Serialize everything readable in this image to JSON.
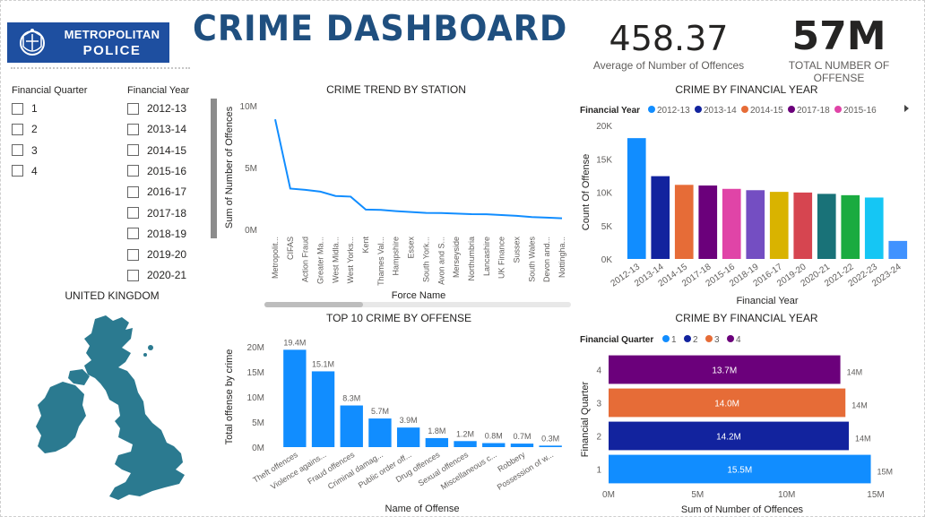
{
  "header": {
    "logo_line1": "METROPOLITAN",
    "logo_line2": "POLICE",
    "title": "CRIME DASHBOARD"
  },
  "kpis": [
    {
      "value": "458.37",
      "label": "Average of Number of Offences"
    },
    {
      "value": "57M",
      "label": "TOTAL NUMBER OF OFFENSE"
    }
  ],
  "slicers": {
    "quarter": {
      "title": "Financial Quarter",
      "options": [
        "1",
        "2",
        "3",
        "4"
      ]
    },
    "year": {
      "title": "Financial Year",
      "options": [
        "2012-13",
        "2013-14",
        "2014-15",
        "2015-16",
        "2016-17",
        "2017-18",
        "2018-19",
        "2019-20",
        "2020-21"
      ]
    }
  },
  "map": {
    "title": "UNITED KINGDOM"
  },
  "colors": {
    "blue": "#118dff",
    "navy": "#12239e",
    "orange": "#e66c37",
    "purple": "#6b007b",
    "pink": "#e044a7",
    "violet": "#744ec2",
    "gold": "#d9b300",
    "red": "#d64550",
    "teal": "#197278",
    "line": "#118dff",
    "map": "#2b7a90"
  },
  "chart_data": [
    {
      "id": "trend",
      "type": "line",
      "title": "CRIME TREND BY STATION",
      "xlabel": "Force Name",
      "ylabel": "Sum of Number of Offences",
      "yticks": [
        "10M",
        "5M",
        "0M"
      ],
      "ylim": [
        0,
        10000000
      ],
      "categories": [
        "Metropolit...",
        "CIFAS",
        "Action Fraud",
        "Greater Ma...",
        "West Midla...",
        "West Yorks...",
        "Kent",
        "Thames Val...",
        "Hampshire",
        "Essex",
        "South York...",
        "Avon and S...",
        "Merseyside",
        "Northumbria",
        "Lancashire",
        "UK Finance",
        "Sussex",
        "South Wales",
        "Devon and...",
        "Nottingha..."
      ],
      "values": [
        8900000,
        3300000,
        3200000,
        3050000,
        2700000,
        2650000,
        1600000,
        1580000,
        1480000,
        1400000,
        1330000,
        1320000,
        1280000,
        1230000,
        1220000,
        1160000,
        1100000,
        1000000,
        950000,
        900000
      ]
    },
    {
      "id": "byyear",
      "type": "bar",
      "title": "CRIME BY FINANCIAL YEAR",
      "legend_title": "Financial Year",
      "legend": [
        "2012-13",
        "2013-14",
        "2014-15",
        "2017-18",
        "2015-16"
      ],
      "xlabel": "Financial Year",
      "ylabel": "Count Of Offense",
      "yticks": [
        "20K",
        "15K",
        "10K",
        "5K",
        "0K"
      ],
      "ylim": [
        0,
        20000
      ],
      "categories": [
        "2012-13",
        "2013-14",
        "2014-15",
        "2017-18",
        "2015-16",
        "2018-19",
        "2016-17",
        "2019-20",
        "2020-21",
        "2021-22",
        "2022-23",
        "2023-24"
      ],
      "values": [
        18100,
        12400,
        11100,
        11000,
        10500,
        10300,
        10050,
        9950,
        9750,
        9550,
        9200,
        2700
      ],
      "bar_colors": [
        "#118dff",
        "#12239e",
        "#e66c37",
        "#6b007b",
        "#e044a7",
        "#744ec2",
        "#d9b300",
        "#d64550",
        "#197278",
        "#1aab40",
        "#15c6f4",
        "#4092ff"
      ]
    },
    {
      "id": "top10",
      "type": "bar",
      "title": "TOP 10 CRIME BY OFFENSE",
      "xlabel": "Name of Offense",
      "ylabel": "Total offense by crime",
      "yticks": [
        "20M",
        "15M",
        "10M",
        "5M",
        "0M"
      ],
      "ylim": [
        0,
        20000000
      ],
      "categories": [
        "Theft offences",
        "Violence agains...",
        "Fraud offences",
        "Criminal damag...",
        "Public order off...",
        "Drug offences",
        "Sexual offences",
        "Miscellaneous c...",
        "Robbery",
        "Possession of w..."
      ],
      "values": [
        19400000,
        15100000,
        8300000,
        5700000,
        3900000,
        1800000,
        1200000,
        800000,
        700000,
        300000
      ],
      "data_labels": [
        "19.4M",
        "15.1M",
        "8.3M",
        "5.7M",
        "3.9M",
        "1.8M",
        "1.2M",
        "0.8M",
        "0.7M",
        "0.3M"
      ]
    },
    {
      "id": "byquarter",
      "type": "bar",
      "orientation": "horizontal",
      "title": "CRIME BY FINANCIAL YEAR",
      "legend_title": "Financial Quarter",
      "legend": [
        "1",
        "2",
        "3",
        "4"
      ],
      "xlabel": "Sum of Number of Offences",
      "ylabel": "Financial Quarter",
      "xticks": [
        "0M",
        "5M",
        "10M",
        "15M"
      ],
      "xlim": [
        0,
        15000000
      ],
      "categories": [
        "4",
        "3",
        "2",
        "1"
      ],
      "values": [
        13700000,
        14000000,
        14200000,
        15500000
      ],
      "inner_labels": [
        "13.7M",
        "14.0M",
        "14.2M",
        "15.5M"
      ],
      "outer_labels": [
        "14M",
        "14M",
        "14M",
        "15M"
      ],
      "bar_colors": [
        "#6b007b",
        "#e66c37",
        "#12239e",
        "#118dff"
      ]
    }
  ]
}
